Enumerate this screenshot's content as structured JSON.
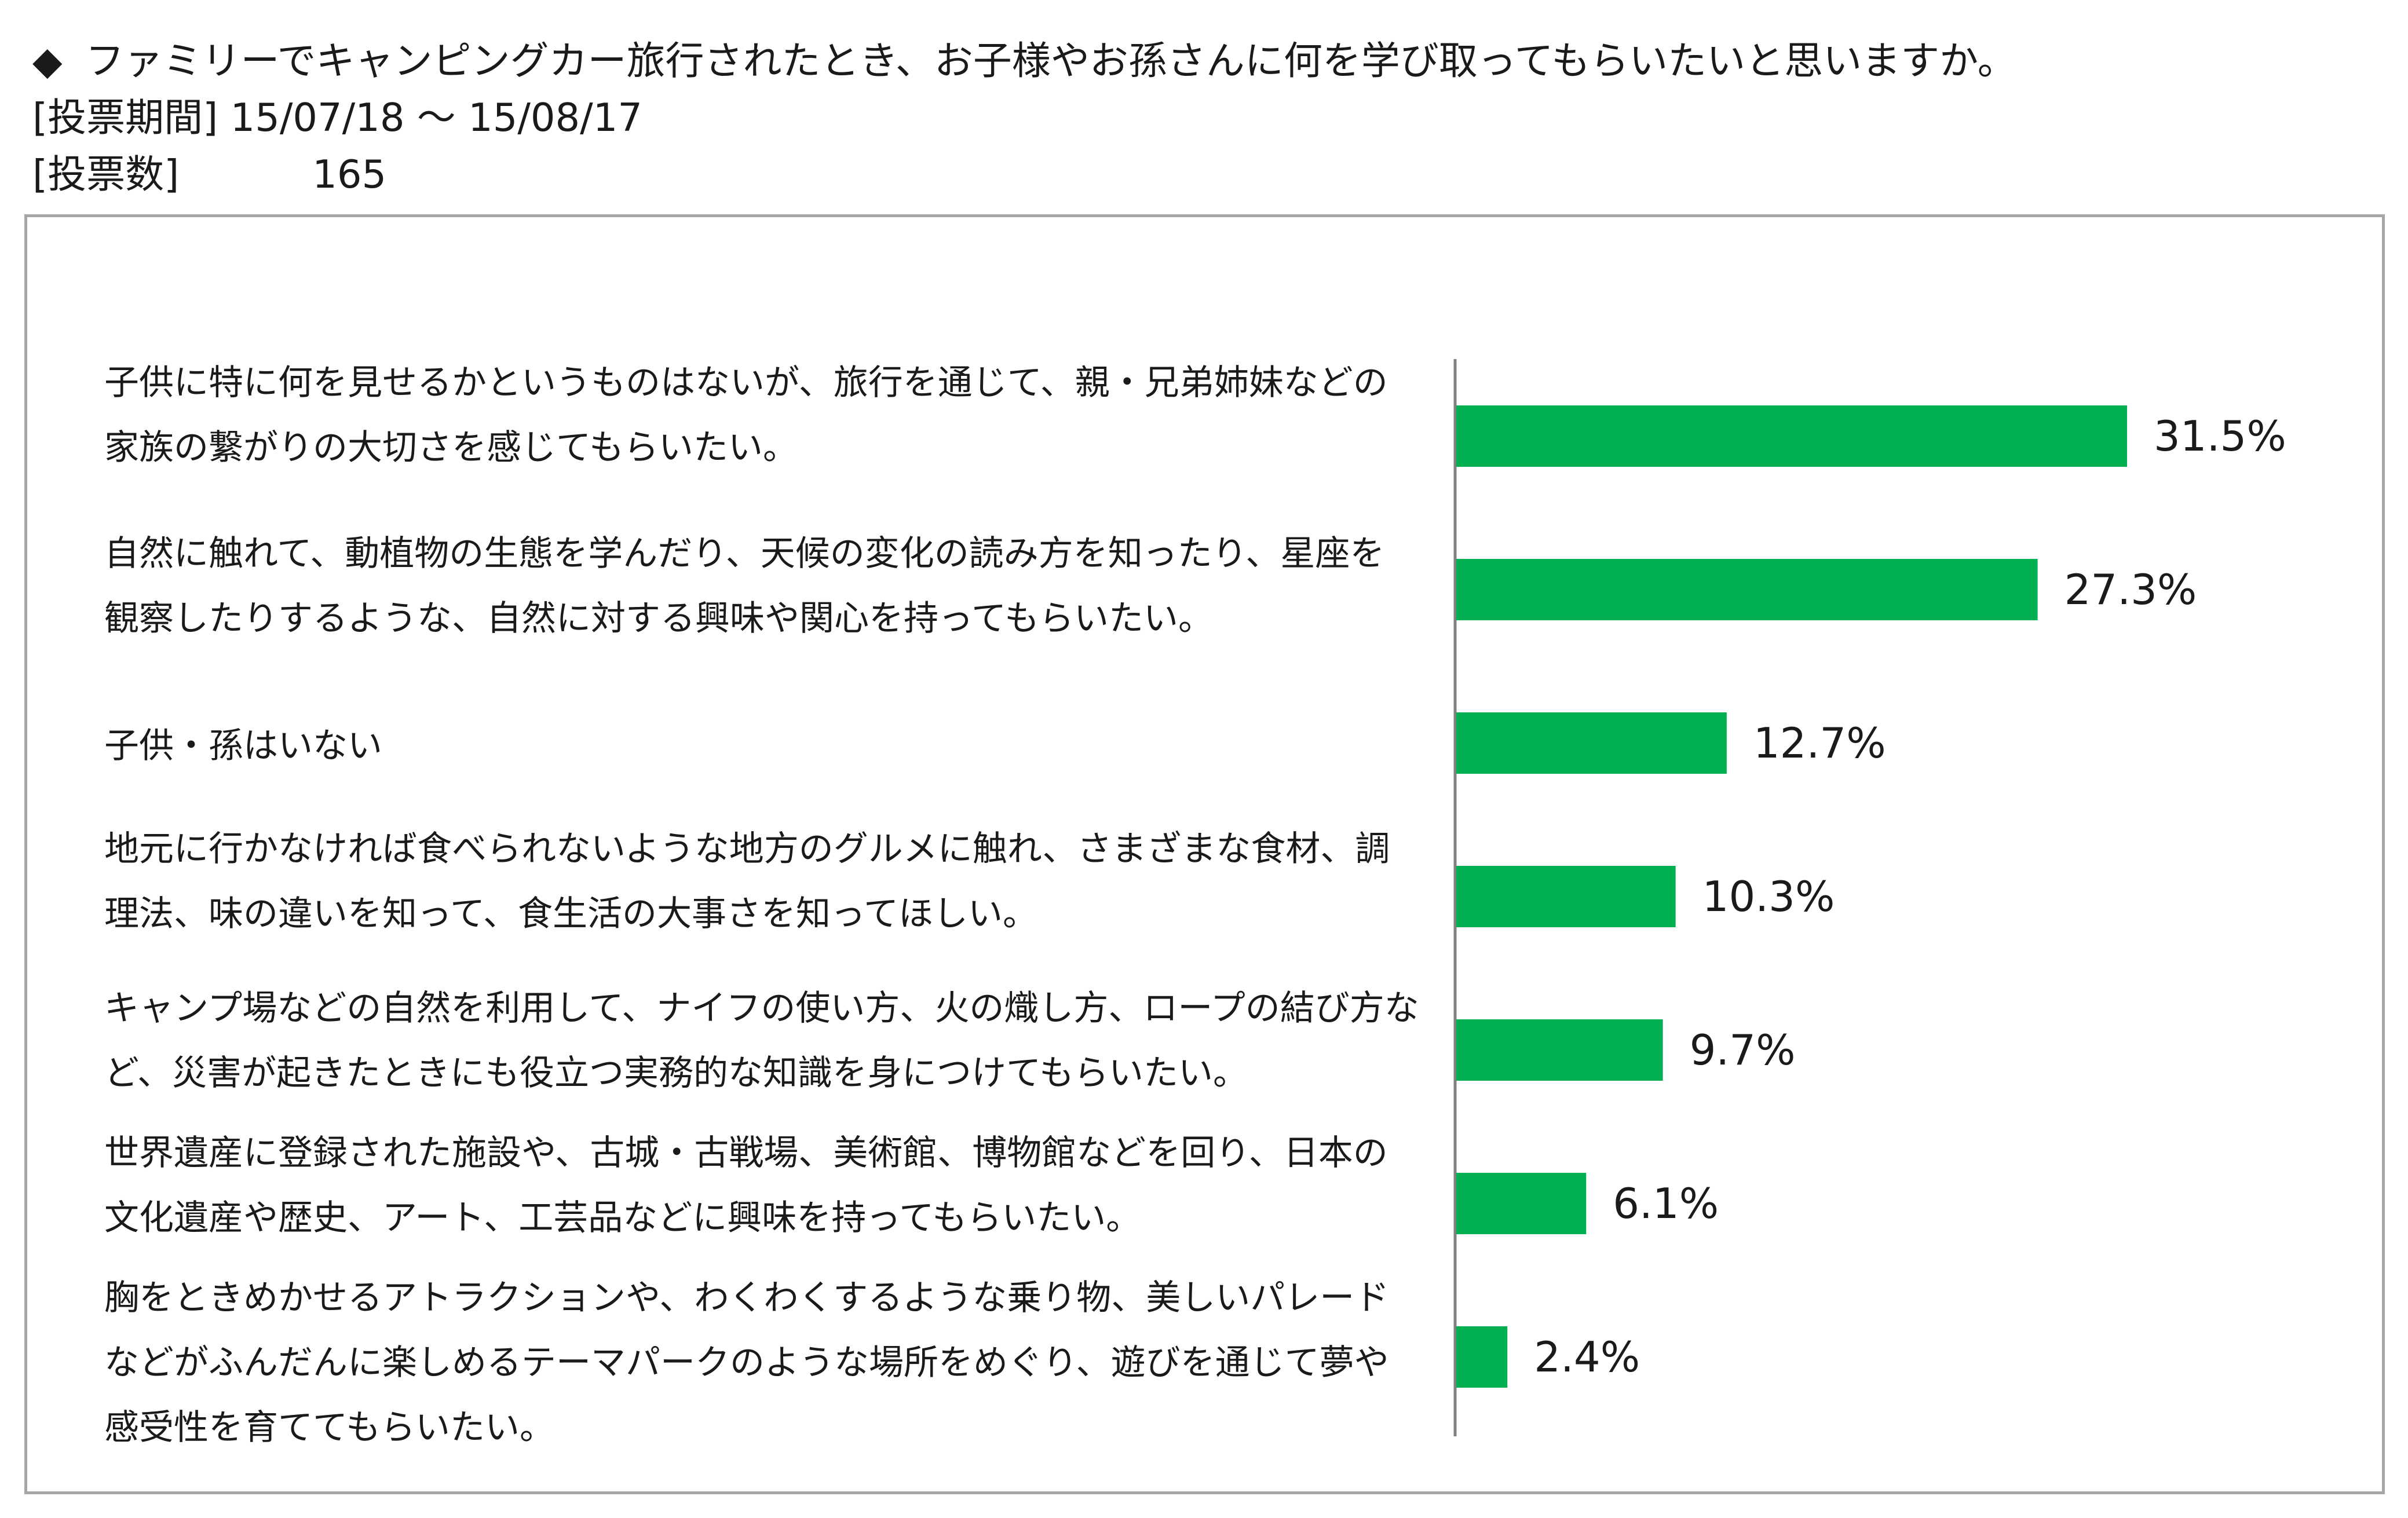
{
  "header": {
    "marker": "◆",
    "question": "ファミリーでキャンピングカー旅行されたとき、お子様やお孫さんに何を学び取ってもらいたいと思いますか。",
    "period_label": "[投票期間]",
    "period_value": "15/07/18 ～ 15/08/17",
    "votes_label": "[投票数]",
    "votes_value": "165"
  },
  "colors": {
    "bar": "#00b050",
    "axis": "#808080",
    "frame": "#a6a6a6",
    "text": "#1a1a1a"
  },
  "chart_data": {
    "type": "bar",
    "orientation": "horizontal",
    "categories": [
      "子供に特に何を見せるかというものはないが、旅行を通じて、親・兄弟姉妹などの家族の繋がりの大切さを感じてもらいたい。",
      "自然に触れて、動植物の生態を学んだり、天候の変化の読み方を知ったり、星座を観察したりするような、自然に対する興味や関心を持ってもらいたい。",
      "子供・孫はいない",
      "地元に行かなければ食べられないような地方のグルメに触れ、さまざまな食材、調理法、味の違いを知って、食生活の大事さを知ってほしい。",
      "キャンプ場などの自然を利用して、ナイフの使い方、火の熾し方、ロープの結び方など、災害が起きたときにも役立つ実務的な知識を身につけてもらいたい。",
      "世界遺産に登録された施設や、古城・古戦場、美術館、博物館などを回り、日本の文化遺産や歴史、アート、工芸品などに興味を持ってもらいたい。",
      "胸をときめかせるアトラクションや、わくわくするような乗り物、美しいパレードなどがふんだんに楽しめるテーマパークのような場所をめぐり、遊びを通じて夢や感受性を育ててもらいたい。"
    ],
    "values": [
      31.5,
      27.3,
      12.7,
      10.3,
      9.7,
      6.1,
      2.4
    ],
    "value_labels": [
      "31.5%",
      "27.3%",
      "12.7%",
      "10.3%",
      "9.7%",
      "6.1%",
      "2.4%"
    ],
    "unit": "%",
    "xlim": [
      0,
      31.5
    ],
    "grid": false,
    "legend": "none"
  }
}
